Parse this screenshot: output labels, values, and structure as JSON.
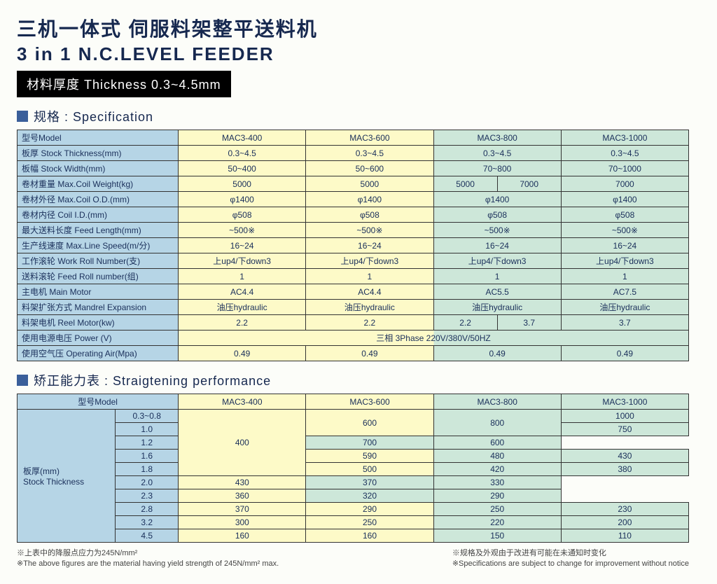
{
  "header": {
    "title_cn": "三机一体式 伺服料架整平送料机",
    "title_en": "3 in 1 N.C.LEVEL FEEDER",
    "thickness": "材料厚度  Thickness 0.3~4.5mm"
  },
  "spec_section": {
    "heading": "规格 : Specification",
    "models": [
      "MAC3-400",
      "MAC3-600",
      "MAC3-800",
      "MAC3-1000"
    ],
    "rows": [
      {
        "label": "型号Model",
        "kind": "models"
      },
      {
        "label": "板厚 Stock Thickness(mm)",
        "cells": [
          "0.3~4.5",
          "0.3~4.5",
          "0.3~4.5",
          "0.3~4.5"
        ]
      },
      {
        "label": "板幅 Stock Width(mm)",
        "cells": [
          "50~400",
          "50~600",
          "70~800",
          "70~1000"
        ]
      },
      {
        "label": "卷材重量 Max.Coil Weight(kg)",
        "cells_split": [
          [
            "5000"
          ],
          [
            "5000"
          ],
          [
            "5000",
            "7000"
          ],
          [
            "7000"
          ]
        ]
      },
      {
        "label": "卷材外径 Max.Coil O.D.(mm)",
        "cells": [
          "φ1400",
          "φ1400",
          "φ1400",
          "φ1400"
        ]
      },
      {
        "label": "卷材内径 Coil I.D.(mm)",
        "cells": [
          "φ508",
          "φ508",
          "φ508",
          "φ508"
        ]
      },
      {
        "label": "最大送料长度 Feed Length(mm)",
        "cells": [
          "~500※",
          "~500※",
          "~500※",
          "~500※"
        ]
      },
      {
        "label": "生产线速度 Max.Line Speed(m/分)",
        "cells": [
          "16~24",
          "16~24",
          "16~24",
          "16~24"
        ]
      },
      {
        "label": "工作滚轮 Work Roll Number(支)",
        "cells": [
          "上up4/下down3",
          "上up4/下down3",
          "上up4/下down3",
          "上up4/下down3"
        ]
      },
      {
        "label": "送料滚轮 Feed Roll number(组)",
        "cells": [
          "1",
          "1",
          "1",
          "1"
        ]
      },
      {
        "label": "主电机 Main Motor",
        "cells": [
          "AC4.4",
          "AC4.4",
          "AC5.5",
          "AC7.5"
        ]
      },
      {
        "label": "料架扩张方式 Mandrel Expansion",
        "cells": [
          "油压hydraulic",
          "油压hydraulic",
          "油压hydraulic",
          "油压hydraulic"
        ]
      },
      {
        "label": "料架电机 Reel Motor(kw)",
        "cells_split": [
          [
            "2.2"
          ],
          [
            "2.2"
          ],
          [
            "2.2",
            "3.7"
          ],
          [
            "3.7"
          ]
        ]
      },
      {
        "label": "使用电源电压 Power (V)",
        "full": "三相 3Phase 220V/380V/50HZ"
      },
      {
        "label": "使用空气压 Operating Air(Mpa)",
        "cells": [
          "0.49",
          "0.49",
          "0.49",
          "0.49"
        ]
      }
    ]
  },
  "perf_section": {
    "heading": "矫正能力表 : Straigtening performance",
    "header_label": "型号Model",
    "row_label_top": "板厚(mm)",
    "row_label_bottom": "Stock Thickness",
    "models": [
      "MAC3-400",
      "MAC3-600",
      "MAC3-800",
      "MAC3-1000"
    ],
    "rows": [
      {
        "t": "0.3~0.8",
        "v": [
          "rs:400:5",
          "rs:600:2",
          "rs:800:2",
          "1000"
        ]
      },
      {
        "t": "1.0",
        "v": [
          "",
          "",
          "",
          "750"
        ]
      },
      {
        "t": "1.2",
        "v": [
          "",
          "",
          "700",
          "600"
        ]
      },
      {
        "t": "1.6",
        "v": [
          "",
          "590",
          "480",
          "430"
        ]
      },
      {
        "t": "1.8",
        "v": [
          "",
          "500",
          "420",
          "380"
        ]
      },
      {
        "t": "2.0",
        "v": [
          "",
          "430",
          "370",
          "330"
        ]
      },
      {
        "t": "2.3",
        "v": [
          "",
          "360",
          "320",
          "290"
        ]
      },
      {
        "t": "2.8",
        "v": [
          "370",
          "290",
          "250",
          "230"
        ]
      },
      {
        "t": "3.2",
        "v": [
          "300",
          "250",
          "220",
          "200"
        ]
      },
      {
        "t": "4.5",
        "v": [
          "160",
          "160",
          "150",
          "110"
        ]
      }
    ]
  },
  "footnotes": {
    "left_cn": "※上表中的降服点应力为245N/mm²",
    "left_en": "※The above figures are the material having yield strength of 245N/mm² max.",
    "right_cn": "※规格及外观由于改进有可能在未通知时变化",
    "right_en": "※Specifications are subject to change for improvement without notice"
  }
}
